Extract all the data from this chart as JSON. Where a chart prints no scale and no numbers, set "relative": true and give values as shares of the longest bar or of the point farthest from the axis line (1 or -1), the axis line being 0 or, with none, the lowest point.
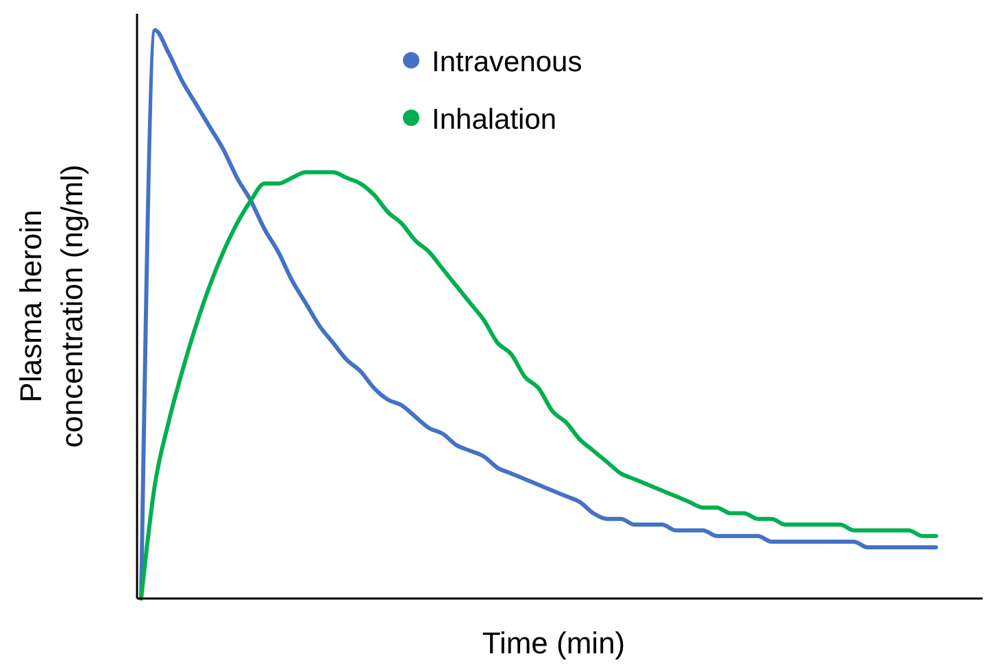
{
  "chart_data": {
    "type": "line",
    "relative": true,
    "xlabel": "Time (min)",
    "ylabel": "Plasma heroin concentration (ng/ml)",
    "legend": "top",
    "marker": "none",
    "line_style": "solid",
    "categories": [
      null,
      null,
      null,
      null,
      null,
      null,
      null,
      null,
      null,
      null,
      null,
      null,
      null,
      null,
      null,
      null,
      null,
      null,
      null,
      null,
      null,
      null,
      null,
      null,
      null,
      null,
      null,
      null,
      null,
      null,
      null,
      null,
      null,
      null,
      null,
      null,
      null,
      null,
      null,
      null,
      null,
      null,
      null,
      null,
      null,
      null,
      null,
      null,
      null,
      null,
      null,
      null,
      null,
      null,
      null,
      null,
      null,
      null,
      null
    ],
    "series": [
      {
        "name": "Intravenous",
        "color": "#4472c4",
        "values": [
          0,
          1.0,
          0.96,
          0.91,
          0.87,
          0.83,
          0.79,
          0.74,
          0.7,
          0.65,
          0.61,
          0.56,
          0.52,
          0.48,
          0.45,
          0.42,
          0.4,
          0.37,
          0.35,
          0.34,
          0.32,
          0.3,
          0.29,
          0.27,
          0.26,
          0.25,
          0.23,
          0.22,
          0.21,
          0.2,
          0.19,
          0.18,
          0.17,
          0.15,
          0.14,
          0.14,
          0.13,
          0.13,
          0.13,
          0.12,
          0.12,
          0.12,
          0.11,
          0.11,
          0.11,
          0.11,
          0.1,
          0.1,
          0.1,
          0.1,
          0.1,
          0.1,
          0.1,
          0.09,
          0.09,
          0.09,
          0.09,
          0.09,
          0.09
        ]
      },
      {
        "name": "Inhalation",
        "color": "#00b050",
        "values": [
          0,
          0.2,
          0.31,
          0.4,
          0.48,
          0.55,
          0.61,
          0.66,
          0.7,
          0.73,
          0.73,
          0.74,
          0.75,
          0.75,
          0.75,
          0.74,
          0.73,
          0.71,
          0.68,
          0.66,
          0.63,
          0.61,
          0.58,
          0.55,
          0.52,
          0.49,
          0.45,
          0.43,
          0.39,
          0.37,
          0.33,
          0.31,
          0.28,
          0.26,
          0.24,
          0.22,
          0.21,
          0.2,
          0.19,
          0.18,
          0.17,
          0.16,
          0.16,
          0.15,
          0.15,
          0.14,
          0.14,
          0.13,
          0.13,
          0.13,
          0.13,
          0.13,
          0.12,
          0.12,
          0.12,
          0.12,
          0.12,
          0.11,
          0.11
        ]
      }
    ]
  }
}
